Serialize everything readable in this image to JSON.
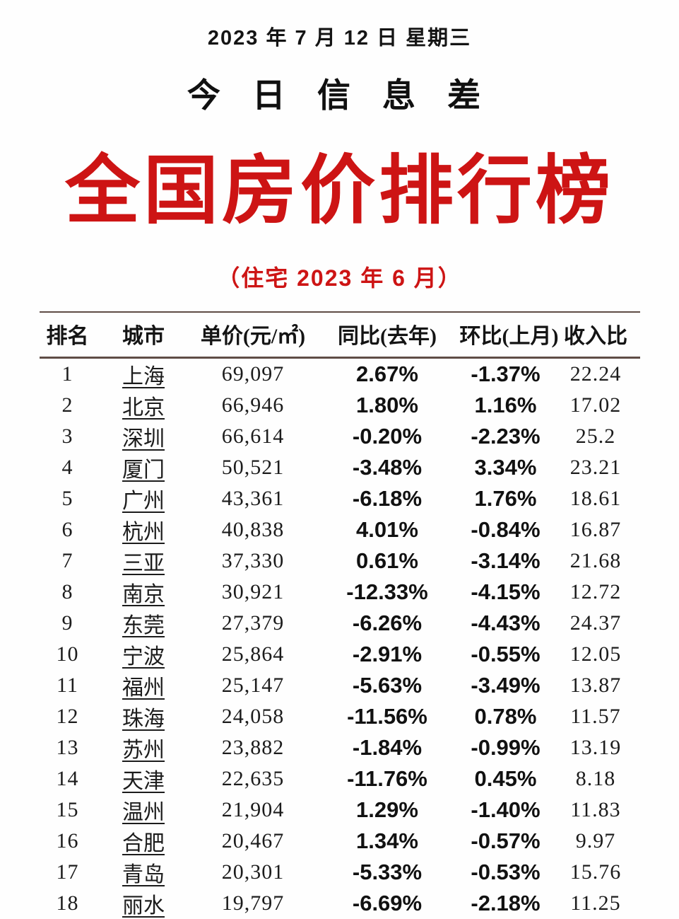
{
  "page": {
    "date_line": "2023 年 7 月 12 日 星期三",
    "info_title": "今 日 信 息 差",
    "main_title": "全国房价排行榜",
    "subtitle": "（住宅 2023 年 6 月）"
  },
  "colors": {
    "accent_red": "#cd1414",
    "text_black": "#1a1a1a",
    "table_rule": "#5f4c46",
    "background": "#fefefe"
  },
  "chart_data": {
    "type": "table",
    "title": "全国房价排行榜",
    "subtitle": "（住宅 2023 年 6 月）",
    "columns": [
      "排名",
      "城市",
      "单价(元/㎡)",
      "同比(去年)",
      "环比(上月)",
      "收入比"
    ],
    "rows": [
      [
        "1",
        "上海",
        "69,097",
        "2.67%",
        "-1.37%",
        "22.24"
      ],
      [
        "2",
        "北京",
        "66,946",
        "1.80%",
        "1.16%",
        "17.02"
      ],
      [
        "3",
        "深圳",
        "66,614",
        "-0.20%",
        "-2.23%",
        "25.2"
      ],
      [
        "4",
        "厦门",
        "50,521",
        "-3.48%",
        "3.34%",
        "23.21"
      ],
      [
        "5",
        "广州",
        "43,361",
        "-6.18%",
        "1.76%",
        "18.61"
      ],
      [
        "6",
        "杭州",
        "40,838",
        "4.01%",
        "-0.84%",
        "16.87"
      ],
      [
        "7",
        "三亚",
        "37,330",
        "0.61%",
        "-3.14%",
        "21.68"
      ],
      [
        "8",
        "南京",
        "30,921",
        "-12.33%",
        "-4.15%",
        "12.72"
      ],
      [
        "9",
        "东莞",
        "27,379",
        "-6.26%",
        "-4.43%",
        "24.37"
      ],
      [
        "10",
        "宁波",
        "25,864",
        "-2.91%",
        "-0.55%",
        "12.05"
      ],
      [
        "11",
        "福州",
        "25,147",
        "-5.63%",
        "-3.49%",
        "13.87"
      ],
      [
        "12",
        "珠海",
        "24,058",
        "-11.56%",
        "0.78%",
        "11.57"
      ],
      [
        "13",
        "苏州",
        "23,882",
        "-1.84%",
        "-0.99%",
        "13.19"
      ],
      [
        "14",
        "天津",
        "22,635",
        "-11.76%",
        "0.45%",
        "8.18"
      ],
      [
        "15",
        "温州",
        "21,904",
        "1.29%",
        "-1.40%",
        "11.83"
      ],
      [
        "16",
        "合肥",
        "20,467",
        "1.34%",
        "-0.57%",
        "9.97"
      ],
      [
        "17",
        "青岛",
        "20,301",
        "-5.33%",
        "-0.53%",
        "15.76"
      ],
      [
        "18",
        "丽水",
        "19,797",
        "-6.69%",
        "-2.18%",
        "11.25"
      ]
    ]
  }
}
